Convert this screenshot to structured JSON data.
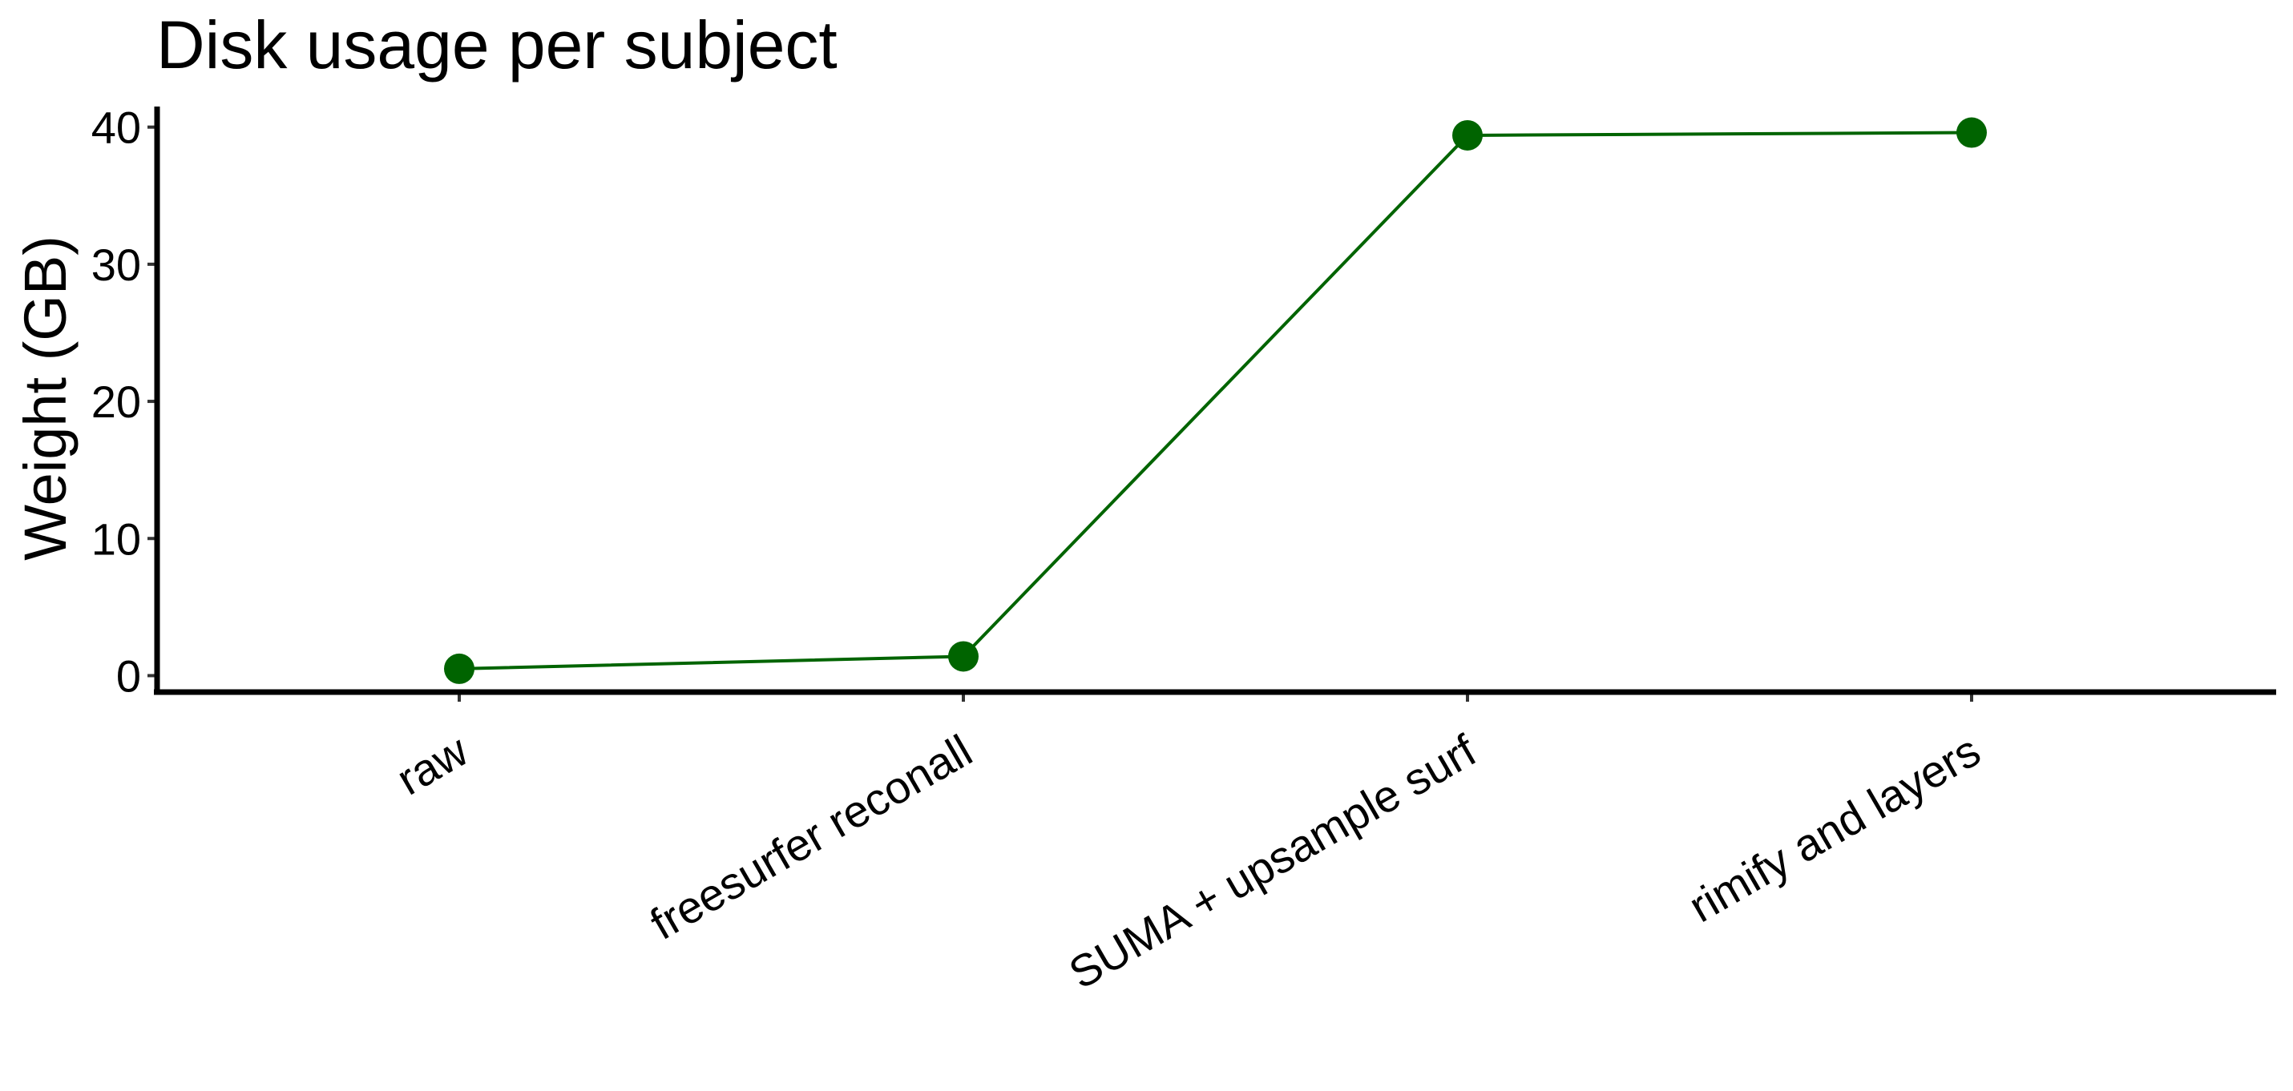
{
  "chart_data": {
    "type": "line",
    "title": "Disk usage per subject",
    "xlabel": "",
    "ylabel": "Weight (GB)",
    "categories": [
      "raw",
      "freesurfer reconall",
      "SUMA + upsample surf",
      "rimify and layers"
    ],
    "series": [
      {
        "values": [
          0.5,
          1.4,
          39.4,
          39.6
        ],
        "color": "#006400"
      }
    ],
    "ylim": [
      -1.2,
      41.5
    ],
    "yticks": [
      0,
      10,
      20,
      30,
      40
    ],
    "grid": false,
    "legend": "none"
  }
}
